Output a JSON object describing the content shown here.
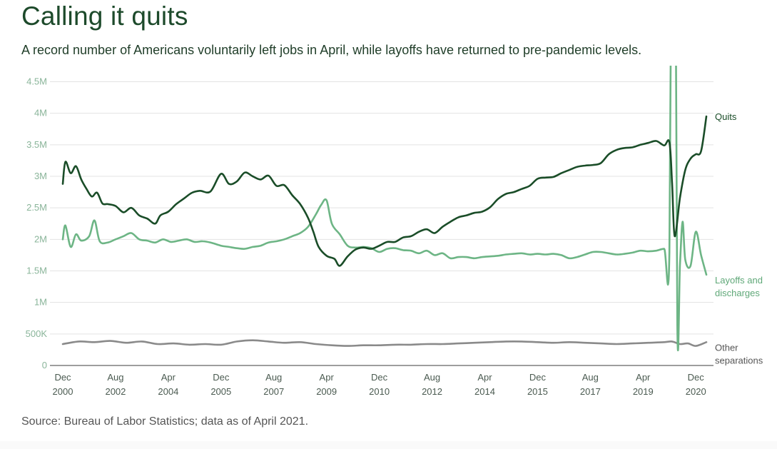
{
  "title": "Calling it quits",
  "subtitle": "A record number of Americans voluntarily left jobs in April, while layoffs have returned to pre-pandemic levels.",
  "source": "Source: Bureau of Labor Statistics; data as of April 2021.",
  "chart_data": {
    "type": "line",
    "x_unit": "date",
    "ylim": [
      0,
      4500000
    ],
    "y_ticks": [
      {
        "value": 0,
        "label": "0"
      },
      {
        "value": 500000,
        "label": "500K"
      },
      {
        "value": 1000000,
        "label": "1M"
      },
      {
        "value": 1500000,
        "label": "1.5M"
      },
      {
        "value": 2000000,
        "label": "2M"
      },
      {
        "value": 2500000,
        "label": "2.5M"
      },
      {
        "value": 3000000,
        "label": "3M"
      },
      {
        "value": 3500000,
        "label": "3.5M"
      },
      {
        "value": 4000000,
        "label": "4M"
      },
      {
        "value": 4500000,
        "label": "4.5M"
      }
    ],
    "x_ticks": [
      {
        "date": "2000-12",
        "line1": "Dec",
        "line2": "2000"
      },
      {
        "date": "2002-08",
        "line1": "Aug",
        "line2": "2002"
      },
      {
        "date": "2004-04",
        "line1": "Apr",
        "line2": "2004"
      },
      {
        "date": "2005-12",
        "line1": "Dec",
        "line2": "2005"
      },
      {
        "date": "2007-08",
        "line1": "Aug",
        "line2": "2007"
      },
      {
        "date": "2009-04",
        "line1": "Apr",
        "line2": "2009"
      },
      {
        "date": "2010-12",
        "line1": "Dec",
        "line2": "2010"
      },
      {
        "date": "2012-08",
        "line1": "Aug",
        "line2": "2012"
      },
      {
        "date": "2014-04",
        "line1": "Apr",
        "line2": "2014"
      },
      {
        "date": "2015-12",
        "line1": "Dec",
        "line2": "2015"
      },
      {
        "date": "2017-08",
        "line1": "Aug",
        "line2": "2017"
      },
      {
        "date": "2019-04",
        "line1": "Apr",
        "line2": "2019"
      },
      {
        "date": "2020-12",
        "line1": "Dec",
        "line2": "2020"
      }
    ],
    "grid": "horizontal",
    "series": [
      {
        "name": "Quits",
        "label_lines": [
          "Quits"
        ],
        "color": "#1a4d28",
        "points": [
          [
            "2000-12",
            2880000
          ],
          [
            "2001-01",
            3230000
          ],
          [
            "2001-03",
            3050000
          ],
          [
            "2001-05",
            3160000
          ],
          [
            "2001-07",
            2950000
          ],
          [
            "2001-09",
            2800000
          ],
          [
            "2001-11",
            2680000
          ],
          [
            "2002-01",
            2740000
          ],
          [
            "2002-03",
            2570000
          ],
          [
            "2002-05",
            2560000
          ],
          [
            "2002-08",
            2530000
          ],
          [
            "2002-11",
            2430000
          ],
          [
            "2003-02",
            2500000
          ],
          [
            "2003-05",
            2380000
          ],
          [
            "2003-08",
            2330000
          ],
          [
            "2003-11",
            2250000
          ],
          [
            "2004-01",
            2380000
          ],
          [
            "2004-04",
            2440000
          ],
          [
            "2004-07",
            2560000
          ],
          [
            "2004-10",
            2650000
          ],
          [
            "2005-01",
            2740000
          ],
          [
            "2005-04",
            2770000
          ],
          [
            "2005-08",
            2760000
          ],
          [
            "2005-12",
            3040000
          ],
          [
            "2006-03",
            2880000
          ],
          [
            "2006-06",
            2920000
          ],
          [
            "2006-09",
            3060000
          ],
          [
            "2006-12",
            3000000
          ],
          [
            "2007-03",
            2950000
          ],
          [
            "2007-06",
            3010000
          ],
          [
            "2007-09",
            2850000
          ],
          [
            "2007-12",
            2860000
          ],
          [
            "2008-03",
            2700000
          ],
          [
            "2008-06",
            2560000
          ],
          [
            "2008-09",
            2340000
          ],
          [
            "2008-11",
            2120000
          ],
          [
            "2009-01",
            1880000
          ],
          [
            "2009-04",
            1740000
          ],
          [
            "2009-07",
            1690000
          ],
          [
            "2009-09",
            1580000
          ],
          [
            "2009-12",
            1730000
          ],
          [
            "2010-03",
            1840000
          ],
          [
            "2010-06",
            1870000
          ],
          [
            "2010-09",
            1850000
          ],
          [
            "2010-12",
            1900000
          ],
          [
            "2011-03",
            1960000
          ],
          [
            "2011-06",
            1960000
          ],
          [
            "2011-09",
            2030000
          ],
          [
            "2011-12",
            2050000
          ],
          [
            "2012-03",
            2120000
          ],
          [
            "2012-06",
            2160000
          ],
          [
            "2012-09",
            2100000
          ],
          [
            "2012-12",
            2200000
          ],
          [
            "2013-03",
            2280000
          ],
          [
            "2013-06",
            2350000
          ],
          [
            "2013-09",
            2380000
          ],
          [
            "2013-12",
            2420000
          ],
          [
            "2014-03",
            2440000
          ],
          [
            "2014-06",
            2510000
          ],
          [
            "2014-09",
            2640000
          ],
          [
            "2014-12",
            2720000
          ],
          [
            "2015-03",
            2750000
          ],
          [
            "2015-06",
            2800000
          ],
          [
            "2015-09",
            2850000
          ],
          [
            "2015-12",
            2960000
          ],
          [
            "2016-03",
            2980000
          ],
          [
            "2016-06",
            2990000
          ],
          [
            "2016-09",
            3050000
          ],
          [
            "2016-12",
            3100000
          ],
          [
            "2017-03",
            3150000
          ],
          [
            "2017-06",
            3170000
          ],
          [
            "2017-09",
            3180000
          ],
          [
            "2017-12",
            3210000
          ],
          [
            "2018-03",
            3350000
          ],
          [
            "2018-06",
            3420000
          ],
          [
            "2018-09",
            3450000
          ],
          [
            "2018-12",
            3460000
          ],
          [
            "2019-03",
            3500000
          ],
          [
            "2019-06",
            3530000
          ],
          [
            "2019-09",
            3560000
          ],
          [
            "2019-12",
            3490000
          ],
          [
            "2020-02",
            3540000
          ],
          [
            "2020-03",
            2900000
          ],
          [
            "2020-04",
            2050000
          ],
          [
            "2020-06",
            2660000
          ],
          [
            "2020-08",
            3100000
          ],
          [
            "2020-10",
            3280000
          ],
          [
            "2020-12",
            3350000
          ],
          [
            "2021-02",
            3400000
          ],
          [
            "2021-04",
            3950000
          ]
        ]
      },
      {
        "name": "Layoffs and discharges",
        "label_lines": [
          "Layoffs and",
          "discharges"
        ],
        "color": "#6db585",
        "points": [
          [
            "2000-12",
            2000000
          ],
          [
            "2001-01",
            2220000
          ],
          [
            "2001-03",
            1880000
          ],
          [
            "2001-05",
            2080000
          ],
          [
            "2001-07",
            1980000
          ],
          [
            "2001-10",
            2050000
          ],
          [
            "2001-12",
            2300000
          ],
          [
            "2002-02",
            1970000
          ],
          [
            "2002-05",
            1950000
          ],
          [
            "2002-08",
            2000000
          ],
          [
            "2002-11",
            2050000
          ],
          [
            "2003-02",
            2100000
          ],
          [
            "2003-05",
            2000000
          ],
          [
            "2003-08",
            1980000
          ],
          [
            "2003-11",
            1950000
          ],
          [
            "2004-02",
            2000000
          ],
          [
            "2004-05",
            1960000
          ],
          [
            "2004-08",
            1980000
          ],
          [
            "2004-11",
            2000000
          ],
          [
            "2005-02",
            1960000
          ],
          [
            "2005-05",
            1970000
          ],
          [
            "2005-08",
            1950000
          ],
          [
            "2005-12",
            1900000
          ],
          [
            "2006-03",
            1880000
          ],
          [
            "2006-06",
            1860000
          ],
          [
            "2006-09",
            1850000
          ],
          [
            "2006-12",
            1880000
          ],
          [
            "2007-03",
            1900000
          ],
          [
            "2007-06",
            1950000
          ],
          [
            "2007-09",
            1970000
          ],
          [
            "2007-12",
            2000000
          ],
          [
            "2008-03",
            2050000
          ],
          [
            "2008-06",
            2100000
          ],
          [
            "2008-09",
            2200000
          ],
          [
            "2008-12",
            2400000
          ],
          [
            "2009-02",
            2550000
          ],
          [
            "2009-04",
            2620000
          ],
          [
            "2009-06",
            2250000
          ],
          [
            "2009-09",
            2080000
          ],
          [
            "2009-12",
            1900000
          ],
          [
            "2010-03",
            1870000
          ],
          [
            "2010-06",
            1880000
          ],
          [
            "2010-09",
            1860000
          ],
          [
            "2010-12",
            1800000
          ],
          [
            "2011-03",
            1850000
          ],
          [
            "2011-06",
            1860000
          ],
          [
            "2011-09",
            1830000
          ],
          [
            "2011-12",
            1820000
          ],
          [
            "2012-03",
            1780000
          ],
          [
            "2012-06",
            1820000
          ],
          [
            "2012-09",
            1750000
          ],
          [
            "2012-12",
            1780000
          ],
          [
            "2013-03",
            1700000
          ],
          [
            "2013-06",
            1720000
          ],
          [
            "2013-09",
            1720000
          ],
          [
            "2013-12",
            1700000
          ],
          [
            "2014-03",
            1720000
          ],
          [
            "2014-06",
            1730000
          ],
          [
            "2014-09",
            1740000
          ],
          [
            "2014-12",
            1760000
          ],
          [
            "2015-03",
            1770000
          ],
          [
            "2015-06",
            1780000
          ],
          [
            "2015-09",
            1760000
          ],
          [
            "2015-12",
            1770000
          ],
          [
            "2016-03",
            1760000
          ],
          [
            "2016-06",
            1770000
          ],
          [
            "2016-09",
            1750000
          ],
          [
            "2016-12",
            1700000
          ],
          [
            "2017-03",
            1720000
          ],
          [
            "2017-06",
            1760000
          ],
          [
            "2017-09",
            1800000
          ],
          [
            "2017-12",
            1800000
          ],
          [
            "2018-03",
            1780000
          ],
          [
            "2018-06",
            1760000
          ],
          [
            "2018-09",
            1770000
          ],
          [
            "2018-12",
            1790000
          ],
          [
            "2019-03",
            1820000
          ],
          [
            "2019-06",
            1810000
          ],
          [
            "2019-09",
            1820000
          ],
          [
            "2019-12",
            1850000
          ],
          [
            "2020-02",
            1800000
          ],
          [
            "2020-03",
            9000000
          ],
          [
            "2020-04",
            9000000
          ],
          [
            "2020-05",
            650000
          ],
          [
            "2020-06",
            1600000
          ],
          [
            "2020-07",
            2280000
          ],
          [
            "2020-08",
            1680000
          ],
          [
            "2020-10",
            1580000
          ],
          [
            "2020-12",
            2120000
          ],
          [
            "2021-02",
            1750000
          ],
          [
            "2021-04",
            1440000
          ]
        ]
      },
      {
        "name": "Other separations",
        "label_lines": [
          "Other",
          "separations"
        ],
        "color": "#8a8a8a",
        "points": [
          [
            "2000-12",
            340000
          ],
          [
            "2001-06",
            380000
          ],
          [
            "2001-12",
            370000
          ],
          [
            "2002-06",
            390000
          ],
          [
            "2002-12",
            360000
          ],
          [
            "2003-06",
            380000
          ],
          [
            "2003-12",
            340000
          ],
          [
            "2004-06",
            350000
          ],
          [
            "2004-12",
            330000
          ],
          [
            "2005-06",
            340000
          ],
          [
            "2005-12",
            330000
          ],
          [
            "2006-06",
            380000
          ],
          [
            "2006-12",
            400000
          ],
          [
            "2007-06",
            380000
          ],
          [
            "2007-12",
            360000
          ],
          [
            "2008-06",
            370000
          ],
          [
            "2008-12",
            340000
          ],
          [
            "2009-06",
            320000
          ],
          [
            "2009-12",
            310000
          ],
          [
            "2010-06",
            320000
          ],
          [
            "2010-12",
            320000
          ],
          [
            "2011-06",
            330000
          ],
          [
            "2011-12",
            330000
          ],
          [
            "2012-06",
            340000
          ],
          [
            "2012-12",
            340000
          ],
          [
            "2013-06",
            350000
          ],
          [
            "2013-12",
            360000
          ],
          [
            "2014-06",
            370000
          ],
          [
            "2014-12",
            380000
          ],
          [
            "2015-06",
            380000
          ],
          [
            "2015-12",
            370000
          ],
          [
            "2016-06",
            360000
          ],
          [
            "2016-12",
            370000
          ],
          [
            "2017-06",
            360000
          ],
          [
            "2017-12",
            350000
          ],
          [
            "2018-06",
            340000
          ],
          [
            "2018-12",
            350000
          ],
          [
            "2019-06",
            360000
          ],
          [
            "2019-12",
            370000
          ],
          [
            "2020-03",
            380000
          ],
          [
            "2020-06",
            340000
          ],
          [
            "2020-09",
            350000
          ],
          [
            "2020-12",
            310000
          ],
          [
            "2021-04",
            370000
          ]
        ]
      }
    ]
  }
}
